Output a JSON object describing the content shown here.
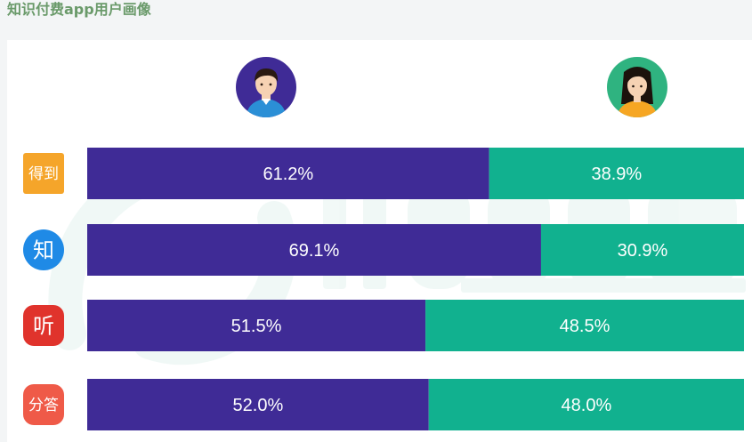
{
  "title": "知识付费app用户画像",
  "colors": {
    "male": "#3f2b96",
    "female": "#11b18f",
    "title": "#6a9a6a",
    "background": "#f3f5f6",
    "card": "#ffffff"
  },
  "legend": {
    "male_icon": "male-avatar-icon",
    "female_icon": "female-avatar-icon"
  },
  "chart_data": {
    "type": "bar",
    "orientation": "horizontal",
    "stacked": true,
    "percent_stacked": true,
    "title": "知识付费app用户画像",
    "categories": [
      "得到",
      "知乎",
      "喜马拉雅FM",
      "分答"
    ],
    "category_icons": [
      "dedao-app-icon",
      "zhihu-app-icon",
      "ximalaya-app-icon",
      "fenda-app-icon"
    ],
    "category_icon_text": [
      "得到",
      "知",
      "听",
      "分答"
    ],
    "category_icon_colors": [
      "#f5a52a",
      "#1f8ae6",
      "#e0332c",
      "#ef5a48"
    ],
    "series": [
      {
        "name": "male",
        "values": [
          61.2,
          69.1,
          51.5,
          52.0
        ],
        "labels": [
          "61.2%",
          "69.1%",
          "51.5%",
          "52.0%"
        ]
      },
      {
        "name": "female",
        "values": [
          38.9,
          30.9,
          48.5,
          48.0
        ],
        "labels": [
          "38.9%",
          "30.9%",
          "48.5%",
          "48.0%"
        ]
      }
    ],
    "xlim": [
      0,
      100
    ],
    "grid": false,
    "legend": "top (avatars)"
  }
}
